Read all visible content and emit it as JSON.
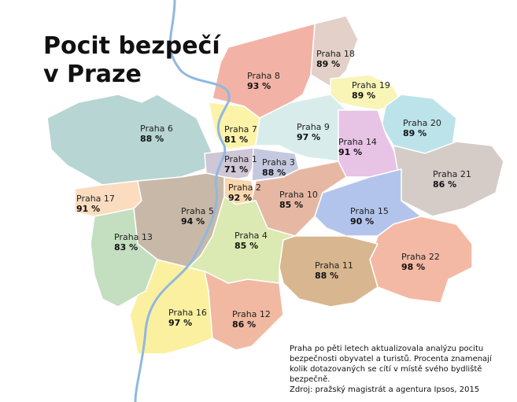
{
  "title": [
    "Pocit bezpečí",
    "v Praze"
  ],
  "districts": [
    {
      "name": "Praha 18",
      "value": "89 %"
    },
    {
      "name": "Praha 8",
      "value": "93 %"
    },
    {
      "name": "Praha 19",
      "value": "89 %"
    },
    {
      "name": "Praha 7",
      "value": "81 %"
    },
    {
      "name": "Praha 9",
      "value": "97 %"
    },
    {
      "name": "Praha 6",
      "value": "88 %"
    },
    {
      "name": "Praha 20",
      "value": "89 %"
    },
    {
      "name": "Praha 14",
      "value": "91 %"
    },
    {
      "name": "Praha 1",
      "value": "71 %"
    },
    {
      "name": "Praha 3",
      "value": "88 %"
    },
    {
      "name": "Praha 21",
      "value": "86 %"
    },
    {
      "name": "Praha 2",
      "value": "92 %"
    },
    {
      "name": "Praha 17",
      "value": "91 %"
    },
    {
      "name": "Praha 10",
      "value": "85 %"
    },
    {
      "name": "Praha 5",
      "value": "94 %"
    },
    {
      "name": "Praha 15",
      "value": "90 %"
    },
    {
      "name": "Praha 13",
      "value": "83 %"
    },
    {
      "name": "Praha 4",
      "value": "85 %"
    },
    {
      "name": "Praha 22",
      "value": "98 %"
    },
    {
      "name": "Praha 11",
      "value": "88 %"
    },
    {
      "name": "Praha 16",
      "value": "97 %"
    },
    {
      "name": "Praha 12",
      "value": "86 %"
    }
  ],
  "note": [
    "Praha po pěti letech aktualizovala analýzu pocitu",
    "bezpečnosti obyvatel a turistů. Procenta znamenají",
    "kolik dotazovaných se cítí v místě svého bydliště",
    "bezpečně.",
    "Zdroj: pražský magistrát a agentura Ipsos, 2015"
  ]
}
